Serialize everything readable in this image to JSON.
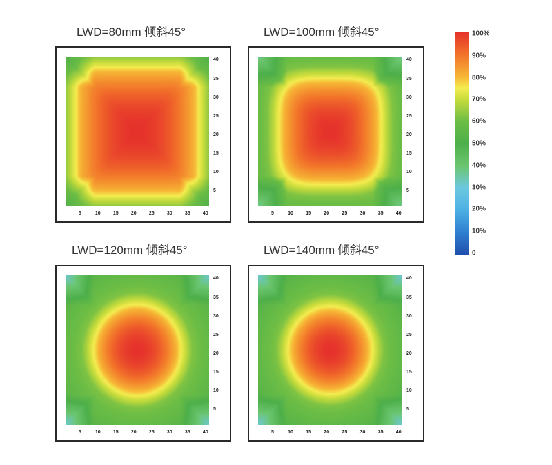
{
  "chart_data": {
    "type": "heatmap",
    "colorbar": {
      "labels": [
        "100%",
        "90%",
        "80%",
        "70%",
        "60%",
        "50%",
        "40%",
        "30%",
        "20%",
        "10%",
        "0"
      ],
      "stops": [
        {
          "v": 0,
          "color": "#1f4fae"
        },
        {
          "v": 10,
          "color": "#2f7fd0"
        },
        {
          "v": 20,
          "color": "#4cb0e4"
        },
        {
          "v": 30,
          "color": "#6cc8e0"
        },
        {
          "v": 40,
          "color": "#6bc56e"
        },
        {
          "v": 50,
          "color": "#4daf4a"
        },
        {
          "v": 60,
          "color": "#6cbd45"
        },
        {
          "v": 70,
          "color": "#c8dc3c"
        },
        {
          "v": 75,
          "color": "#f4ec50"
        },
        {
          "v": 80,
          "color": "#f6b635"
        },
        {
          "v": 90,
          "color": "#f2732a"
        },
        {
          "v": 100,
          "color": "#e5322b"
        }
      ]
    },
    "panels": [
      {
        "title": "LWD=80mm 倾斜45°",
        "x_ticks": [
          "5",
          "10",
          "15",
          "20",
          "25",
          "30",
          "35",
          "40"
        ],
        "y_ticks": [
          "40",
          "35",
          "30",
          "25",
          "20",
          "15",
          "10",
          "5"
        ],
        "xlim": [
          1,
          41
        ],
        "ylim": [
          1,
          41
        ],
        "center": [
          21,
          21
        ],
        "field": {
          "shape": "square",
          "half_width": 16,
          "peak": 100,
          "edge": 55,
          "corner": 52
        }
      },
      {
        "title": "LWD=100mm 倾斜45°",
        "x_ticks": [
          "5",
          "10",
          "15",
          "20",
          "25",
          "30",
          "35",
          "40"
        ],
        "y_ticks": [
          "40",
          "35",
          "30",
          "25",
          "20",
          "15",
          "10",
          "5"
        ],
        "xlim": [
          1,
          41
        ],
        "ylim": [
          1,
          41
        ],
        "center": [
          21,
          21
        ],
        "field": {
          "shape": "rounded-square",
          "half_width": 13,
          "peak": 100,
          "edge": 55,
          "corner": 35
        }
      },
      {
        "title": "LWD=120mm 倾斜45°",
        "x_ticks": [
          "5",
          "10",
          "15",
          "20",
          "25",
          "30",
          "35",
          "40"
        ],
        "y_ticks": [
          "40",
          "35",
          "30",
          "25",
          "20",
          "15",
          "10",
          "5"
        ],
        "xlim": [
          1,
          41
        ],
        "ylim": [
          1,
          41
        ],
        "center": [
          21,
          21
        ],
        "field": {
          "shape": "circle",
          "half_width": 11,
          "peak": 100,
          "edge": 50,
          "corner": 30
        }
      },
      {
        "title": "LWD=140mm 倾斜45°",
        "x_ticks": [
          "5",
          "10",
          "15",
          "20",
          "25",
          "30",
          "35",
          "40"
        ],
        "y_ticks": [
          "40",
          "35",
          "30",
          "25",
          "20",
          "15",
          "10",
          "5"
        ],
        "xlim": [
          1,
          41
        ],
        "ylim": [
          1,
          41
        ],
        "center": [
          21,
          21
        ],
        "field": {
          "shape": "circle",
          "half_width": 10.5,
          "peak": 100,
          "edge": 48,
          "corner": 30
        }
      }
    ]
  }
}
